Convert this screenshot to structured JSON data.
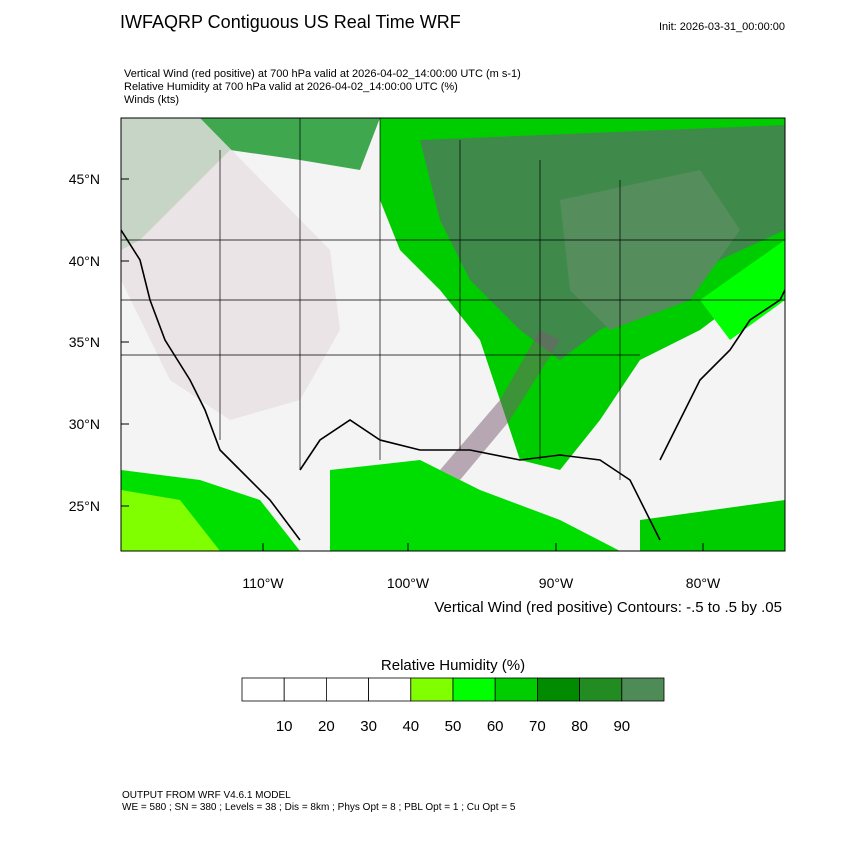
{
  "header": {
    "title": "IWFAQRP Contiguous US Real Time WRF",
    "init": "Init: 2026-03-31_00:00:00"
  },
  "description": [
    "Vertical Wind (red positive) at 700 hPa valid at 2026-04-02_14:00:00 UTC   (m s-1)",
    "Relative Humidity at 700 hPa valid at 2026-04-02_14:00:00 UTC   (%)",
    "Winds   (kts)"
  ],
  "map": {
    "lat_labels": [
      "45°N",
      "40°N",
      "35°N",
      "30°N",
      "25°N"
    ],
    "lon_labels": [
      "110°W",
      "100°W",
      "90°W",
      "80°W"
    ],
    "contour_note": "Vertical Wind (red positive) Contours: -.5 to .5 by .05"
  },
  "colorbar": {
    "title": "Relative Humidity  (%)",
    "colors": [
      "#ffffff",
      "#ffffff",
      "#ffffff",
      "#ffffff",
      "#80ff00",
      "#00ff00",
      "#00cd00",
      "#008b00",
      "#228b22",
      "#4e8b56"
    ],
    "labels": [
      10,
      20,
      30,
      40,
      50,
      60,
      70,
      80,
      90
    ]
  },
  "footer": [
    "OUTPUT FROM WRF V4.6.1 MODEL",
    "WE = 580 ; SN = 380 ; Levels = 38 ; Dis = 8km ; Phys Opt = 8 ; PBL Opt = 1 ; Cu Opt = 5"
  ]
}
